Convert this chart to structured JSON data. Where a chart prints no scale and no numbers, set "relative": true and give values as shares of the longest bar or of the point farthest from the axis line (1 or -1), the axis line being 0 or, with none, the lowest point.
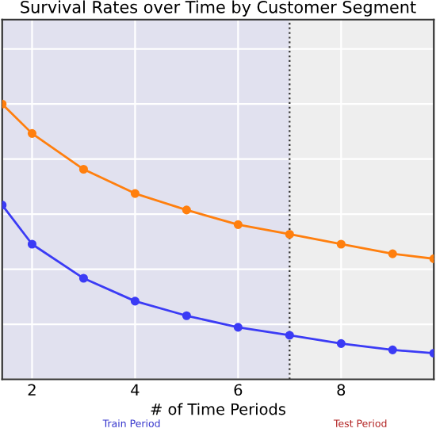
{
  "chart_data": {
    "type": "line",
    "title": "Survival Rates over Time by Customer Segment",
    "xlabel": "# of Time Periods",
    "relative": true,
    "xlim": [
      1.42,
      9.8
    ],
    "xticks": [
      2,
      4,
      6,
      8
    ],
    "grid": true,
    "marker": "circle",
    "line_style": "solid",
    "tick_labels": "x",
    "series": [
      {
        "color": "#ff7f0e",
        "x": [
          1.42,
          2,
          3,
          4,
          5,
          6,
          7,
          8,
          9,
          9.8
        ],
        "values": [
          1,
          0.893,
          0.763,
          0.675,
          0.615,
          0.562,
          0.527,
          0.491,
          0.456,
          0.438
        ]
      },
      {
        "color": "#3b3bf5",
        "x": [
          1.42,
          2,
          3,
          4,
          5,
          6,
          7,
          8,
          9,
          9.8
        ],
        "values": [
          0.633,
          0.491,
          0.367,
          0.284,
          0.231,
          0.189,
          0.16,
          0.13,
          0.107,
          0.095
        ]
      }
    ],
    "ref_lines": [
      {
        "axis": "x",
        "value": 7,
        "color": "#333333",
        "line_style": "dotted"
      }
    ],
    "bands": [
      {
        "axis": "x",
        "from": 1.42,
        "to": 7,
        "color": "#e1e1ef"
      },
      {
        "axis": "x",
        "from": 7,
        "to": 9.8,
        "color": "#eeeeee"
      }
    ],
    "annotations": [
      "Train Period",
      "Test Period"
    ]
  }
}
